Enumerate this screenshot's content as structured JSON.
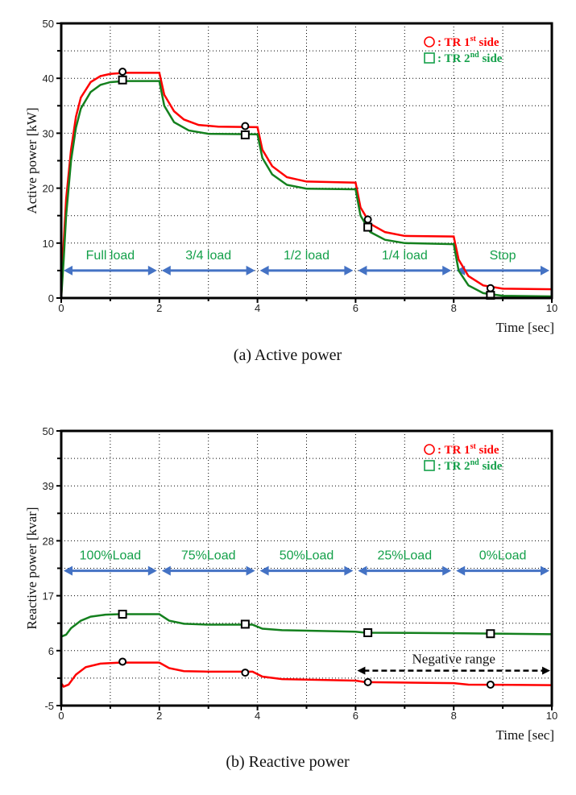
{
  "chart_data": [
    {
      "type": "line",
      "caption": "(a)  Active  power",
      "ylabel": "Active power [kW]",
      "xlabel": "Time [sec]",
      "xlim": [
        0,
        10
      ],
      "ylim": [
        0,
        50
      ],
      "xticks": [
        0,
        2,
        4,
        6,
        8,
        10
      ],
      "yticks": [
        0,
        10,
        20,
        30,
        40,
        50
      ],
      "grid": true,
      "legend": {
        "placement": "top-right",
        "items": [
          {
            "symbol": "circle",
            "label": "TR 1st side",
            "color": "#ff0000"
          },
          {
            "symbol": "square",
            "label": "TR 2nd side",
            "color": "#14a04a"
          }
        ]
      },
      "series": [
        {
          "name": "TR 1st side",
          "color": "#ff0000",
          "marker": "circle",
          "x": [
            0,
            0.05,
            0.1,
            0.2,
            0.3,
            0.4,
            0.6,
            0.8,
            1.0,
            1.3,
            2.0,
            2.1,
            2.3,
            2.5,
            2.8,
            3.2,
            4.0,
            4.1,
            4.3,
            4.6,
            5.0,
            6.0,
            6.1,
            6.3,
            6.6,
            7.0,
            8.0,
            8.1,
            8.3,
            8.6,
            9.0,
            10
          ],
          "y": [
            0,
            10,
            18,
            27,
            33,
            36.5,
            39.3,
            40.4,
            40.8,
            41,
            41,
            37,
            34,
            32.5,
            31.5,
            31.2,
            31.1,
            27,
            24,
            22,
            21.2,
            21,
            16.5,
            13.5,
            12,
            11.3,
            11.2,
            7,
            4,
            2.3,
            1.7,
            1.6
          ],
          "markers": [
            [
              1.25,
              41.2
            ],
            [
              3.75,
              31.3
            ],
            [
              6.25,
              14.3
            ],
            [
              8.75,
              1.8
            ]
          ]
        },
        {
          "name": "TR 2nd side",
          "color": "#14801e",
          "marker": "square",
          "x": [
            0,
            0.05,
            0.1,
            0.2,
            0.3,
            0.4,
            0.6,
            0.8,
            1.0,
            1.3,
            2.0,
            2.1,
            2.3,
            2.6,
            3.0,
            4.0,
            4.1,
            4.3,
            4.6,
            5.0,
            6.0,
            6.1,
            6.3,
            6.6,
            7.0,
            8.0,
            8.1,
            8.3,
            8.6,
            9.0,
            10
          ],
          "y": [
            0,
            7,
            15,
            25,
            31,
            34.5,
            37.5,
            38.8,
            39.3,
            39.5,
            39.5,
            35,
            32,
            30.5,
            29.9,
            29.8,
            25.5,
            22.5,
            20.6,
            19.9,
            19.8,
            15,
            12,
            10.6,
            10,
            9.8,
            5,
            2.3,
            0.9,
            0.4,
            0.3
          ],
          "markers": [
            [
              1.25,
              39.7
            ],
            [
              3.75,
              29.7
            ],
            [
              6.25,
              12.9
            ],
            [
              8.75,
              0.5
            ]
          ]
        }
      ],
      "annotations": {
        "arrow_y": 5,
        "arrow_color": "#4472c4",
        "segments": [
          {
            "from": 0,
            "to": 2,
            "label": "Full load"
          },
          {
            "from": 2,
            "to": 4,
            "label": "3/4 load"
          },
          {
            "from": 4,
            "to": 6,
            "label": "1/2 load"
          },
          {
            "from": 6,
            "to": 8,
            "label": "1/4 load"
          },
          {
            "from": 8,
            "to": 10,
            "label": "Stop"
          }
        ]
      }
    },
    {
      "type": "line",
      "caption": "(b)  Reactive  power",
      "ylabel": "Reactive power [kvar]",
      "xlabel": "Time [sec]",
      "xlim": [
        0,
        10
      ],
      "ylim": [
        -5,
        50
      ],
      "xticks": [
        0,
        2,
        4,
        6,
        8,
        10
      ],
      "yticks": [
        -5,
        6,
        17,
        28,
        39,
        50
      ],
      "grid": true,
      "legend": {
        "placement": "top-right",
        "items": [
          {
            "symbol": "circle",
            "label": "TR 1st side",
            "color": "#ff0000"
          },
          {
            "symbol": "square",
            "label": "TR 2nd side",
            "color": "#14a04a"
          }
        ]
      },
      "series": [
        {
          "name": "TR 1st side",
          "color": "#ff0000",
          "marker": "circle",
          "x": [
            0,
            0.05,
            0.15,
            0.3,
            0.5,
            0.8,
            1.2,
            2.0,
            2.2,
            2.5,
            3.0,
            3.9,
            4.1,
            4.5,
            6.0,
            6.2,
            8.0,
            8.3,
            10
          ],
          "y": [
            -0.5,
            -1.2,
            -0.8,
            1.2,
            2.7,
            3.4,
            3.6,
            3.6,
            2.5,
            1.9,
            1.8,
            1.8,
            0.8,
            0.3,
            0,
            -0.3,
            -0.5,
            -0.8,
            -0.9
          ],
          "markers": [
            [
              1.25,
              3.8
            ],
            [
              3.75,
              1.6
            ],
            [
              6.25,
              -0.3
            ],
            [
              8.75,
              -0.8
            ]
          ]
        },
        {
          "name": "TR 2nd side",
          "color": "#14801e",
          "marker": "square",
          "x": [
            0,
            0.1,
            0.2,
            0.4,
            0.6,
            0.9,
            1.2,
            2.0,
            2.2,
            2.5,
            3.0,
            3.9,
            4.1,
            4.5,
            6.0,
            6.2,
            8.0,
            10
          ],
          "y": [
            8.8,
            9.2,
            10.5,
            12,
            12.8,
            13.2,
            13.3,
            13.3,
            12,
            11.4,
            11.2,
            11.2,
            10.4,
            10.1,
            9.8,
            9.6,
            9.5,
            9.3
          ],
          "markers": [
            [
              1.25,
              13.3
            ],
            [
              3.75,
              11.3
            ],
            [
              6.25,
              9.6
            ],
            [
              8.75,
              9.4
            ]
          ]
        }
      ],
      "annotations": {
        "arrow_y": 22,
        "arrow_color": "#4472c4",
        "segments": [
          {
            "from": 0,
            "to": 2,
            "label": "100%Load"
          },
          {
            "from": 2,
            "to": 4,
            "label": "75%Load"
          },
          {
            "from": 4,
            "to": 6,
            "label": "50%Load"
          },
          {
            "from": 6,
            "to": 8,
            "label": "25%Load"
          },
          {
            "from": 8,
            "to": 10,
            "label": "0%Load"
          }
        ],
        "negative_range": {
          "from": 6,
          "to": 10,
          "y": 2,
          "label": "Negative range"
        }
      }
    }
  ]
}
